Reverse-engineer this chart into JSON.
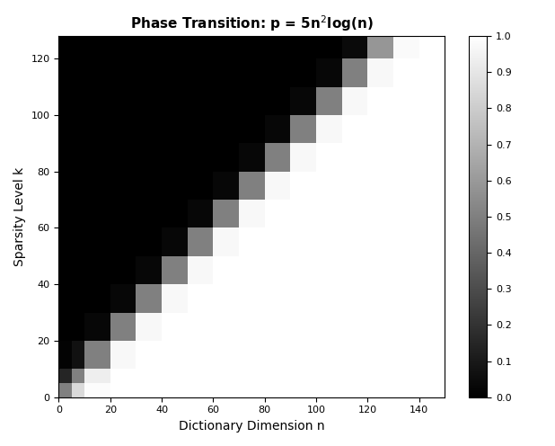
{
  "title": "Phase Transition: p = 5n$^2$log(n)",
  "xlabel": "Dictionary Dimension n",
  "ylabel": "Sparsity Level k",
  "colormap": "gray",
  "xlim": [
    -0.5,
    150
  ],
  "ylim": [
    0,
    128
  ],
  "xticks": [
    0,
    20,
    40,
    60,
    80,
    100,
    120,
    140
  ],
  "yticks": [
    0,
    20,
    40,
    60,
    80,
    100,
    120
  ],
  "colorbar_ticks": [
    0,
    0.1,
    0.2,
    0.3,
    0.4,
    0.5,
    0.6,
    0.7,
    0.8,
    0.9,
    1.0
  ],
  "n_vals": [
    5,
    10,
    20,
    30,
    40,
    50,
    60,
    70,
    80,
    90,
    100,
    110,
    120,
    130,
    140,
    150
  ],
  "k_vals": [
    5,
    10,
    20,
    30,
    40,
    50,
    60,
    70,
    80,
    90,
    100,
    110,
    120,
    128
  ]
}
